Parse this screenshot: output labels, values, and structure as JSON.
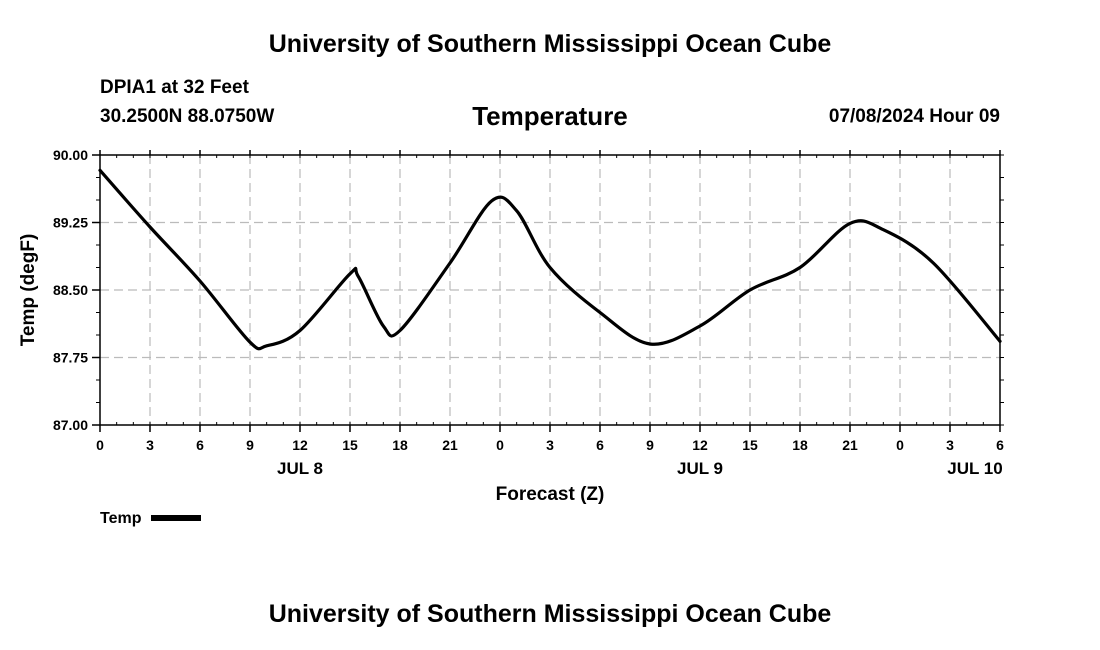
{
  "header": {
    "title": "University of Southern Mississippi Ocean Cube",
    "station": "DPIA1 at 32 Feet",
    "coords": "30.2500N  88.0750W",
    "datetime": "07/08/2024 Hour 09"
  },
  "footer": {
    "title": "University of Southern Mississippi Ocean Cube"
  },
  "legend": {
    "label": "Temp"
  },
  "chart_data": {
    "type": "line",
    "title": "Temperature",
    "xlabel": "Forecast (Z)",
    "ylabel": "Temp (degF)",
    "ylim": [
      87.0,
      90.0
    ],
    "xlim": [
      0,
      54
    ],
    "x_unit": "hours from 00Z JUL 8",
    "grid": true,
    "legend_position": "bottom-left",
    "line_color": "#000000",
    "yticks": [
      "90.00",
      "89.25",
      "88.50",
      "87.75",
      "87.00"
    ],
    "xticks": [
      {
        "x": 0,
        "label": "0"
      },
      {
        "x": 3,
        "label": "3"
      },
      {
        "x": 6,
        "label": "6"
      },
      {
        "x": 9,
        "label": "9"
      },
      {
        "x": 12,
        "label": "12"
      },
      {
        "x": 15,
        "label": "15"
      },
      {
        "x": 18,
        "label": "18"
      },
      {
        "x": 21,
        "label": "21"
      },
      {
        "x": 24,
        "label": "0"
      },
      {
        "x": 27,
        "label": "3"
      },
      {
        "x": 30,
        "label": "6"
      },
      {
        "x": 33,
        "label": "9"
      },
      {
        "x": 36,
        "label": "12"
      },
      {
        "x": 39,
        "label": "15"
      },
      {
        "x": 42,
        "label": "18"
      },
      {
        "x": 45,
        "label": "21"
      },
      {
        "x": 48,
        "label": "0"
      },
      {
        "x": 51,
        "label": "3"
      },
      {
        "x": 54,
        "label": "6"
      }
    ],
    "date_labels": [
      {
        "x": 12,
        "label": "JUL 8"
      },
      {
        "x": 36,
        "label": "JUL 9"
      },
      {
        "x": 52.5,
        "label": "JUL 10"
      }
    ],
    "series": [
      {
        "name": "Temp",
        "x": [
          0,
          3,
          6,
          9,
          10,
          12,
          15,
          15.5,
          17,
          18,
          21,
          23.5,
          25,
          27,
          30,
          33,
          36,
          39,
          42,
          45,
          47,
          50,
          54
        ],
        "y": [
          89.83,
          89.2,
          88.6,
          87.92,
          87.88,
          88.05,
          88.68,
          88.65,
          88.1,
          88.05,
          88.8,
          89.49,
          89.38,
          88.75,
          88.25,
          87.9,
          88.1,
          88.5,
          88.75,
          89.24,
          89.17,
          88.8,
          87.93
        ]
      }
    ]
  }
}
